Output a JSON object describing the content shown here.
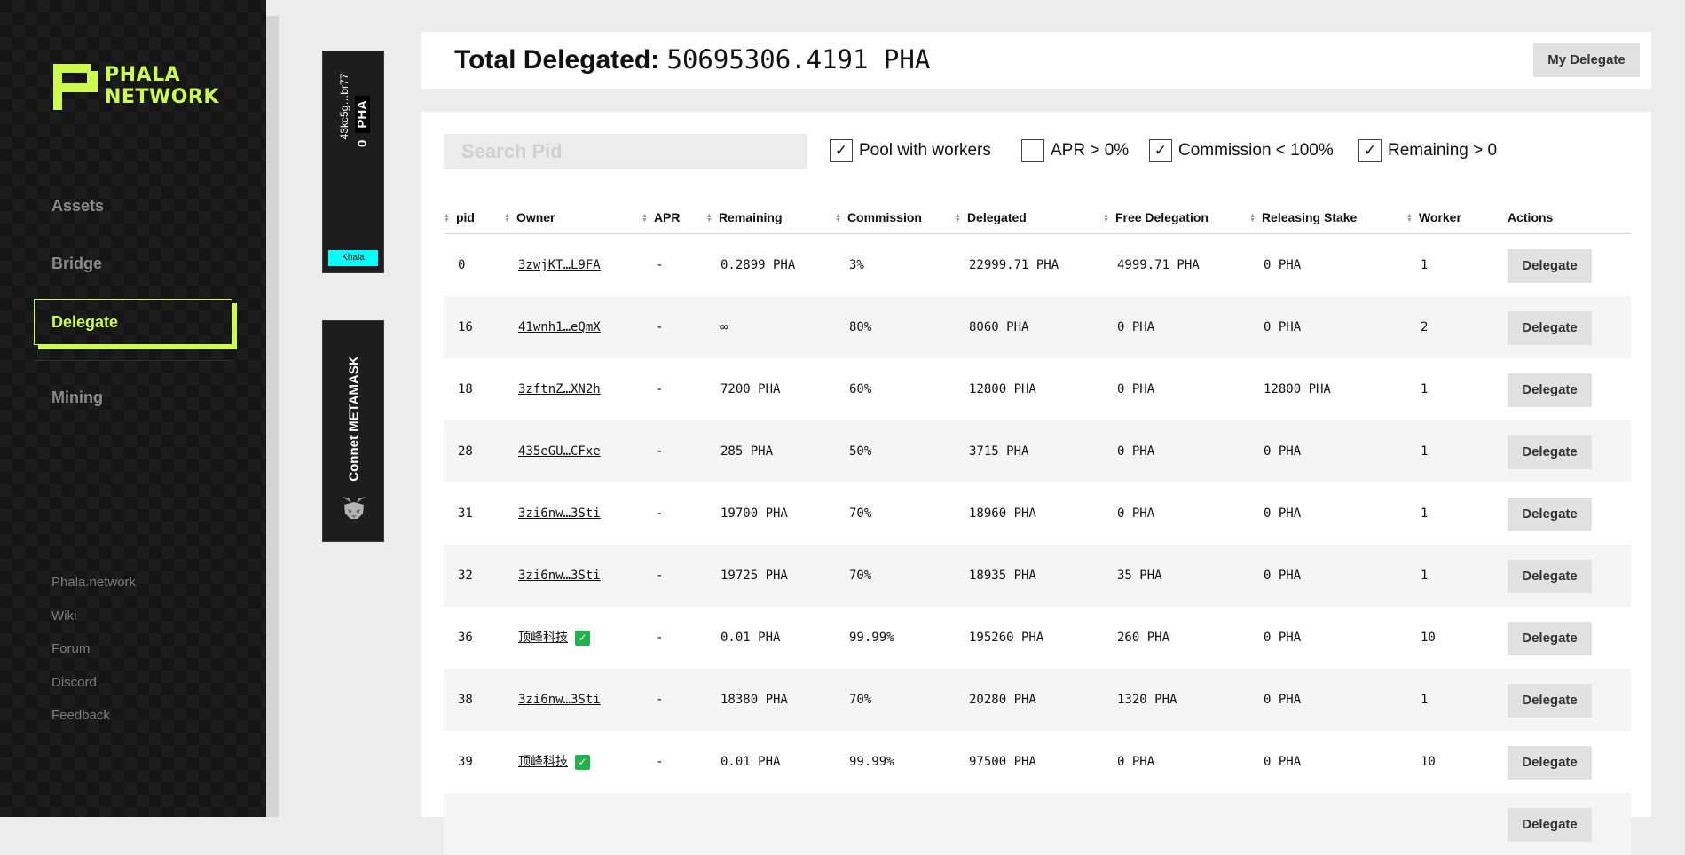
{
  "brand": {
    "line1": "PHALA",
    "line2": "NETWORK"
  },
  "nav": {
    "assets": "Assets",
    "bridge": "Bridge",
    "delegate": "Delegate",
    "mining": "Mining"
  },
  "footer_links": [
    "Phala.network",
    "Wiki",
    "Forum",
    "Discord",
    "Feedback"
  ],
  "account": {
    "address": "43kc5g…br77",
    "balance": "0",
    "unit": "PHA",
    "network": "Khala"
  },
  "metamask": {
    "label": "Connet METAMASK"
  },
  "header": {
    "total_label": "Total Delegated:",
    "total_value": "50695306.4191 PHA",
    "my_delegate": "My Delegate"
  },
  "search": {
    "placeholder": "Search Pid",
    "value": ""
  },
  "filters": [
    {
      "label": "Pool with workers",
      "checked": true
    },
    {
      "label": "APR > 0%",
      "checked": false
    },
    {
      "label": "Commission < 100%",
      "checked": true
    },
    {
      "label": "Remaining > 0",
      "checked": true
    }
  ],
  "columns": [
    "pid",
    "Owner",
    "APR",
    "Remaining",
    "Commission",
    "Delegated",
    "Free Delegation",
    "Releasing Stake",
    "Worker",
    "Actions"
  ],
  "action_label": "Delegate",
  "verified_icon": "✓",
  "rows": [
    {
      "pid": "0",
      "owner": "3zwjKT…L9FA",
      "verified": false,
      "apr": "-",
      "remaining": "0.2899 PHA",
      "commission": "3%",
      "delegated": "22999.71 PHA",
      "free": "4999.71 PHA",
      "releasing": "0 PHA",
      "worker": "1"
    },
    {
      "pid": "16",
      "owner": "41wnh1…eQmX",
      "verified": false,
      "apr": "-",
      "remaining": "∞",
      "commission": "80%",
      "delegated": "8060 PHA",
      "free": "0 PHA",
      "releasing": "0 PHA",
      "worker": "2"
    },
    {
      "pid": "18",
      "owner": "3zftnZ…XN2h",
      "verified": false,
      "apr": "-",
      "remaining": "7200 PHA",
      "commission": "60%",
      "delegated": "12800 PHA",
      "free": "0 PHA",
      "releasing": "12800 PHA",
      "worker": "1"
    },
    {
      "pid": "28",
      "owner": "435eGU…CFxe",
      "verified": false,
      "apr": "-",
      "remaining": "285 PHA",
      "commission": "50%",
      "delegated": "3715 PHA",
      "free": "0 PHA",
      "releasing": "0 PHA",
      "worker": "1"
    },
    {
      "pid": "31",
      "owner": "3zi6nw…3Sti",
      "verified": false,
      "apr": "-",
      "remaining": "19700 PHA",
      "commission": "70%",
      "delegated": "18960 PHA",
      "free": "0 PHA",
      "releasing": "0 PHA",
      "worker": "1"
    },
    {
      "pid": "32",
      "owner": "3zi6nw…3Sti",
      "verified": false,
      "apr": "-",
      "remaining": "19725 PHA",
      "commission": "70%",
      "delegated": "18935 PHA",
      "free": "35 PHA",
      "releasing": "0 PHA",
      "worker": "1"
    },
    {
      "pid": "36",
      "owner": "顶峰科技",
      "verified": true,
      "apr": "-",
      "remaining": "0.01 PHA",
      "commission": "99.99%",
      "delegated": "195260 PHA",
      "free": "260 PHA",
      "releasing": "0 PHA",
      "worker": "10"
    },
    {
      "pid": "38",
      "owner": "3zi6nw…3Sti",
      "verified": false,
      "apr": "-",
      "remaining": "18380 PHA",
      "commission": "70%",
      "delegated": "20280 PHA",
      "free": "1320 PHA",
      "releasing": "0 PHA",
      "worker": "1"
    },
    {
      "pid": "39",
      "owner": "顶峰科技",
      "verified": true,
      "apr": "-",
      "remaining": "0.01 PHA",
      "commission": "99.99%",
      "delegated": "97500 PHA",
      "free": "0 PHA",
      "releasing": "0 PHA",
      "worker": "10"
    },
    {
      "pid": "",
      "owner": "",
      "verified": false,
      "apr": "",
      "remaining": "",
      "commission": "",
      "delegated": "",
      "free": "",
      "releasing": "",
      "worker": ""
    }
  ],
  "colors": {
    "accent": "#cdfa50",
    "network": "#03ffff",
    "verified": "#22b14c"
  }
}
